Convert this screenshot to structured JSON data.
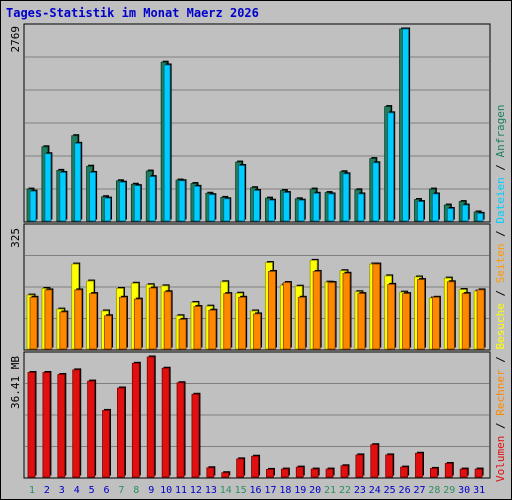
{
  "title": "Tages-Statistik im Monat Maerz 2026",
  "colors": {
    "background": "#c0c0c0",
    "title": "#0000cc",
    "anfragen": "#1f8060",
    "dateien": "#00ccff",
    "seiten": "#ff9900",
    "besuche": "#ffff00",
    "rechner": "#ff8800",
    "volumen": "#e01010",
    "weekend_day": "#2a9060",
    "weekday_day": "#0000cc",
    "separator": "#000000"
  },
  "legend_labels": {
    "volumen": "Volumen",
    "rechner": "Rechner",
    "besuche": "Besuche",
    "seiten": "Seiten",
    "dateien": "Dateien",
    "anfragen": "Anfragen",
    "sep": "/"
  },
  "chart_data": [
    {
      "type": "bar",
      "panel": "top",
      "ymax_label": "2769",
      "ylim": [
        0,
        2769
      ],
      "categories": [
        "1",
        "2",
        "3",
        "4",
        "5",
        "6",
        "7",
        "8",
        "9",
        "10",
        "11",
        "12",
        "13",
        "14",
        "15",
        "16",
        "17",
        "18",
        "19",
        "20",
        "21",
        "22",
        "23",
        "24",
        "25",
        "26",
        "27",
        "28",
        "29",
        "30",
        "31"
      ],
      "weekend_days": [
        "1",
        "7",
        "8",
        "14",
        "15",
        "21",
        "22",
        "28",
        "29"
      ],
      "series": [
        {
          "name": "Anfragen",
          "values": [
            460,
            1070,
            730,
            1230,
            790,
            350,
            580,
            530,
            720,
            2290,
            590,
            540,
            400,
            340,
            850,
            480,
            330,
            440,
            320,
            460,
            410,
            710,
            450,
            900,
            1650,
            2769,
            310,
            460,
            230,
            280,
            130
          ]
        },
        {
          "name": "Dateien",
          "values": [
            430,
            970,
            700,
            1120,
            700,
            330,
            560,
            510,
            640,
            2250,
            580,
            500,
            380,
            320,
            800,
            440,
            300,
            410,
            300,
            400,
            390,
            680,
            390,
            840,
            1560,
            2769,
            280,
            390,
            180,
            230,
            110
          ]
        }
      ]
    },
    {
      "type": "bar",
      "panel": "middle",
      "ymax_label": "325",
      "ylim": [
        0,
        325
      ],
      "categories": [
        "1",
        "2",
        "3",
        "4",
        "5",
        "6",
        "7",
        "8",
        "9",
        "10",
        "11",
        "12",
        "13",
        "14",
        "15",
        "16",
        "17",
        "18",
        "19",
        "20",
        "21",
        "22",
        "23",
        "24",
        "25",
        "26",
        "27",
        "28",
        "29",
        "30",
        "31"
      ],
      "series": [
        {
          "name": "Besuche",
          "values": [
            146,
            164,
            108,
            230,
            184,
            103,
            164,
            178,
            174,
            171,
            90,
            126,
            116,
            182,
            151,
            103,
            234,
            173,
            170,
            240,
            181,
            212,
            155,
            230,
            198,
            154,
            195,
            138,
            192,
            161,
            157
          ]
        },
        {
          "name": "Seiten",
          "values": [
            129,
            152,
            111,
            164,
            151,
            97,
            150,
            141,
            162,
            149,
            83,
            116,
            106,
            151,
            141,
            98,
            202,
            179,
            139,
            208,
            178,
            201,
            146,
            228,
            178,
            149,
            184,
            140,
            181,
            151,
            157
          ]
        },
        {
          "name": "Rechner",
          "values": [
            140,
            160,
            100,
            160,
            150,
            90,
            140,
            135,
            165,
            155,
            80,
            115,
            105,
            150,
            140,
            95,
            210,
            180,
            140,
            210,
            180,
            205,
            150,
            230,
            175,
            150,
            188,
            140,
            182,
            150,
            160
          ]
        }
      ]
    },
    {
      "type": "bar",
      "panel": "bottom",
      "ymax_label": "36.41 MB",
      "ylim": [
        0,
        36.41
      ],
      "categories": [
        "1",
        "2",
        "3",
        "4",
        "5",
        "6",
        "7",
        "8",
        "9",
        "10",
        "11",
        "12",
        "13",
        "14",
        "15",
        "16",
        "17",
        "18",
        "19",
        "20",
        "21",
        "22",
        "23",
        "24",
        "25",
        "26",
        "27",
        "28",
        "29",
        "30",
        "31"
      ],
      "series": [
        {
          "name": "Volumen",
          "values": [
            31.7,
            31.7,
            31.1,
            32.5,
            29.1,
            20.2,
            27.0,
            34.5,
            36.41,
            33.0,
            28.6,
            25.1,
            2.8,
            1.3,
            5.5,
            6.3,
            2.3,
            2.4,
            3.0,
            2.4,
            2.4,
            3.4,
            6.7,
            9.8,
            6.7,
            3.0,
            7.2,
            2.6,
            4.1,
            2.4,
            2.4
          ]
        }
      ]
    }
  ]
}
